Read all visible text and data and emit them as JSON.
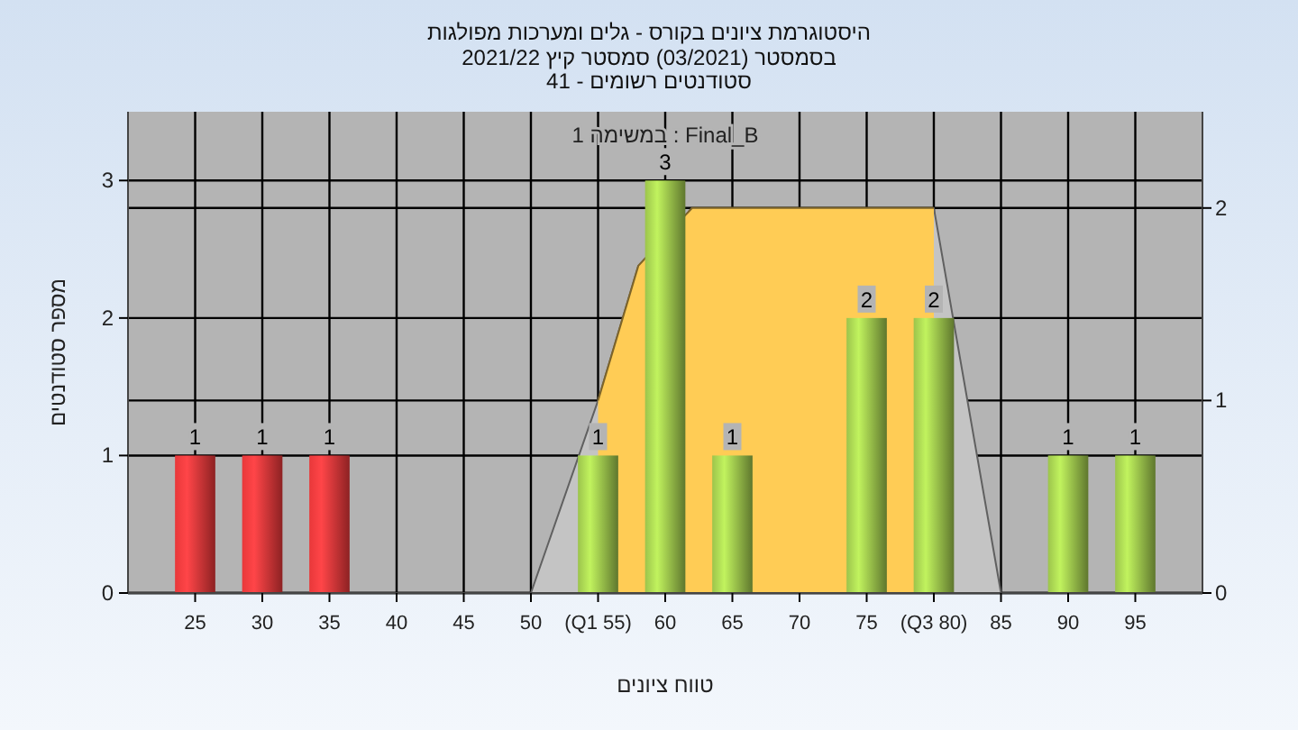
{
  "chart_data": {
    "type": "bar",
    "title": "היסטוגרמת ציונים בקורס - גלים ומערכות מפולגות",
    "subtitle": "בסמסטר (03/2021) סמסטר קיץ 2021/22\nסטודנטים רשומים - 41",
    "xlabel": "טווח ציונים",
    "ylabel": "מספר סטודנטים",
    "annotations": [
      "במשימה 1 : Final_B"
    ],
    "xlim": [
      20,
      100
    ],
    "xticks": [
      25,
      30,
      35,
      40,
      45,
      50,
      {
        "value": 55,
        "label": "(Q1 55)"
      },
      60,
      65,
      70,
      75,
      {
        "value": 80,
        "label": "(Q3 80)"
      },
      85,
      90,
      95
    ],
    "ylim": [
      0,
      3.5
    ],
    "yticks": [
      0,
      1,
      2,
      3
    ],
    "y2lim": [
      0,
      2.5
    ],
    "y2ticks": [
      0,
      1,
      2
    ],
    "grid": true,
    "series": [
      {
        "type": "area",
        "axis": "y2",
        "color": "#c4c4c4",
        "x": [
          50,
          55,
          58,
          62,
          80,
          85
        ],
        "values": [
          0,
          1,
          1.7,
          2,
          2,
          0
        ]
      },
      {
        "type": "area",
        "axis": "y2",
        "color": "#ffcc55",
        "x": [
          55,
          58,
          62,
          80
        ],
        "values": [
          1,
          1.7,
          2,
          2
        ]
      },
      {
        "color": "#e8383a",
        "x": [
          25,
          30,
          35
        ],
        "values": [
          1,
          1,
          1
        ],
        "value_labels": [
          "1",
          "1",
          "1"
        ]
      },
      {
        "color": "#9cc44c",
        "x": [
          55,
          60,
          65,
          75,
          80,
          90,
          95
        ],
        "values": [
          1,
          3,
          1,
          2,
          2,
          1,
          1
        ],
        "value_labels": [
          "1",
          "3",
          "1",
          "2",
          "2",
          "1",
          "1"
        ]
      }
    ]
  }
}
